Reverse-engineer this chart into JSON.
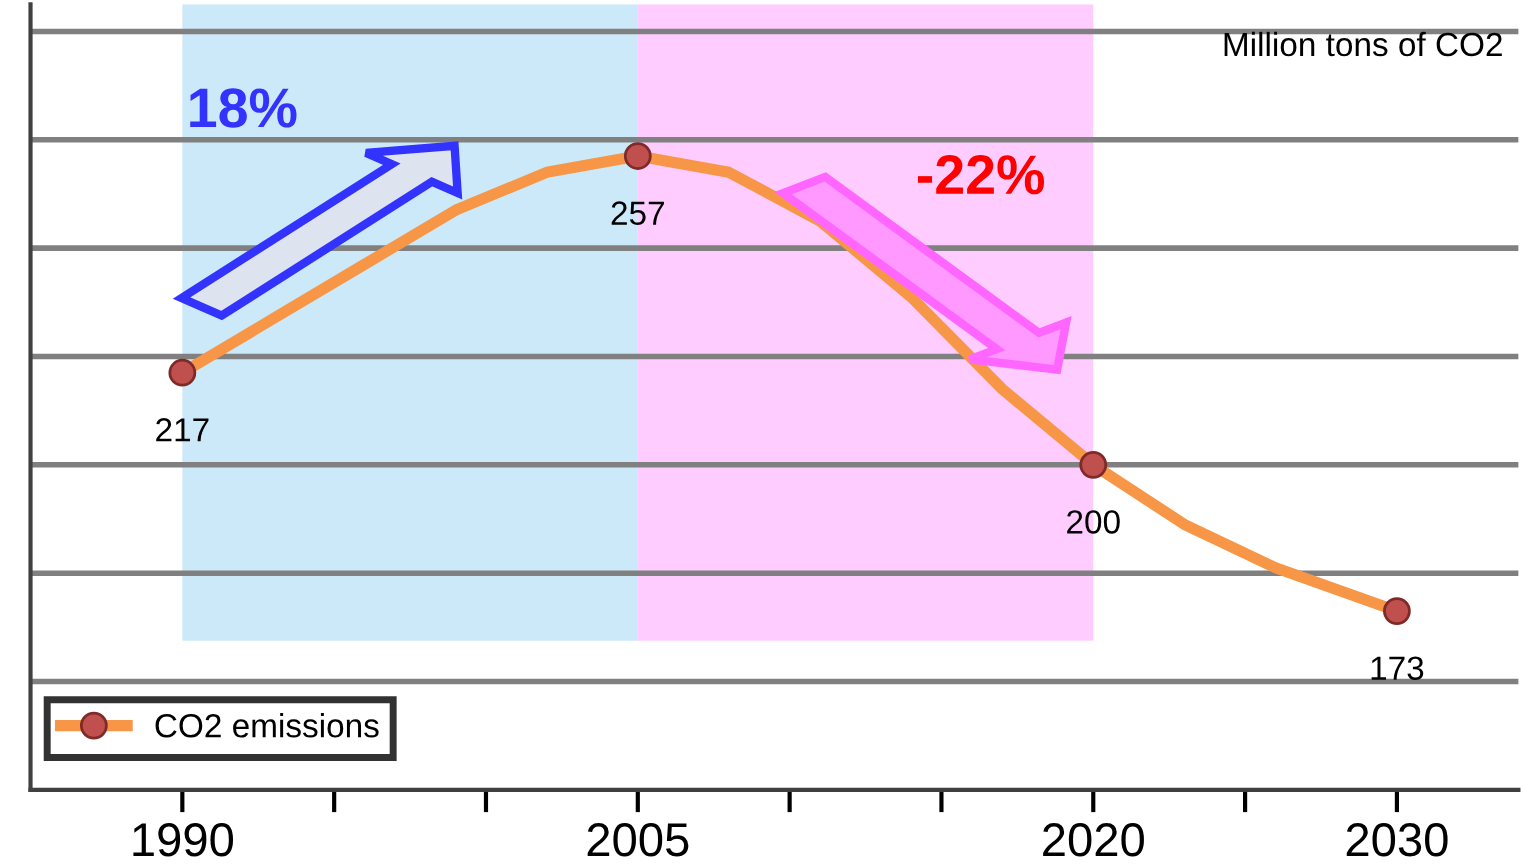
{
  "chart_data": {
    "type": "line",
    "series": [
      {
        "name": "CO2 emissions",
        "color": "#f79646",
        "x": [
          1990,
          1993,
          1996,
          1999,
          2002,
          2005,
          2008,
          2011,
          2014,
          2017,
          2020,
          2023,
          2026,
          2030
        ],
        "values": [
          217,
          227,
          237,
          247,
          254,
          257,
          254,
          245,
          231,
          214,
          200,
          189,
          181,
          173
        ]
      },
      {
        "type": "scatter",
        "color": "#c0504d",
        "x": [
          1990,
          2005,
          2020,
          2030
        ],
        "values": [
          217,
          257,
          200,
          173
        ],
        "marker": "circle",
        "data_labels": true
      }
    ],
    "xlim": [
      1985,
      2034
    ],
    "xticks": [
      1990,
      {
        "value": 1995,
        "label": null
      },
      {
        "value": 2000,
        "label": null
      },
      2005,
      {
        "value": 2010,
        "label": null
      },
      {
        "value": 2015,
        "label": null
      },
      2020,
      {
        "value": 2025,
        "label": null
      },
      2030
    ],
    "ylim": [
      140,
      285
    ],
    "yticks": [
      {
        "value": 160,
        "label": null
      },
      {
        "value": 180,
        "label": null
      },
      {
        "value": 200,
        "label": null
      },
      {
        "value": 220,
        "label": null
      },
      {
        "value": 240,
        "label": null
      },
      {
        "value": 260,
        "label": null
      },
      {
        "value": 280,
        "label": null
      }
    ],
    "tick_labels": "x",
    "grid": "y",
    "legend": "bottom left",
    "line_style": "solid",
    "bands": [
      {
        "axis": "x",
        "from": 1990,
        "to": 2005,
        "color": "#cce9f9"
      },
      {
        "axis": "x",
        "from": 2005,
        "to": 2020,
        "color": "#ffccff"
      }
    ],
    "annotations": [
      "18%",
      "-22%",
      "Million tons of CO2"
    ]
  }
}
